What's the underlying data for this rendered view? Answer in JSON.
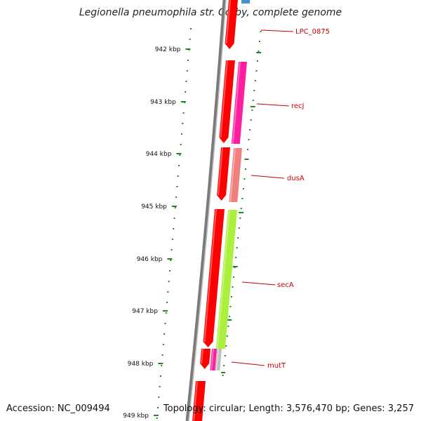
{
  "title": "Legionella pneumophila str. Corby, complete genome",
  "footer": {
    "accession": "Accession: NC_009494",
    "summary": "Topology: circular; Length: 3,576,470 bp; Genes: 3,257"
  },
  "ticks": [
    "942 kbp",
    "943 kbp",
    "944 kbp",
    "945 kbp",
    "946 kbp",
    "947 kbp",
    "948 kbp",
    "949 kbp"
  ],
  "genes": [
    "LPC_0875",
    "recJ",
    "dusA",
    "secA",
    "mutT"
  ],
  "colors": {
    "cds": "#ff0000",
    "gene_pink": "#ff1ea0",
    "gene_salmon": "#f08080",
    "gene_green": "#aaf03c",
    "gene_grey": "#c0c0c0",
    "gene_blue": "#4a90c8",
    "backbone": "#808080",
    "tick_green": "#228822",
    "label_red": "#cc0000"
  }
}
